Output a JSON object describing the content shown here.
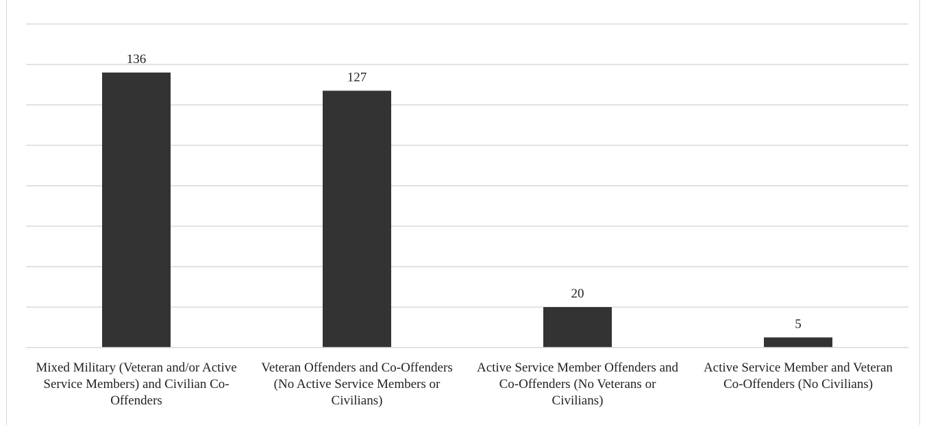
{
  "chart_data": {
    "type": "bar",
    "title": "",
    "xlabel": "",
    "ylabel": "",
    "ylim": [
      0,
      160
    ],
    "grid": true,
    "legend": "none",
    "bar_color": "#333333",
    "grid_color": "#d9d9d9",
    "categories": [
      "Mixed Military (Veteran and/or Active Service Members) and Civilian Co-Offenders",
      "Veteran Offenders and Co-Offenders (No Active Service Members or Civilians)",
      "Active Service Member Offenders and Co-Offenders (No Veterans or Civilians)",
      "Active Service Member and Veteran Co-Offenders (No Civilians)"
    ],
    "values": [
      136,
      127,
      20,
      5
    ],
    "data_labels": [
      "136",
      "127",
      "20",
      "5"
    ]
  }
}
